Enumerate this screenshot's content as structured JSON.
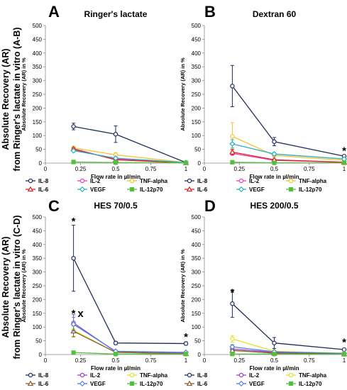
{
  "row_labels": [
    "Absolute Recovery (AR)\nfrom Ringer's lactate in vitro (A-B)",
    "Absolute Recovery (AR)\nfrom Ringer's lactate in vitro (C-D)"
  ],
  "colors": {
    "IL-8": "#1f2d5a",
    "IL-2": "#e83fbf",
    "TNF-alpha": "#f2c232",
    "IL-6": "#e02020",
    "VEGF": "#2ab0c0",
    "IL-12p70": "#55c040",
    "IL-2_CD": "#9b40c8",
    "TNF-alpha_CD": "#e8e020",
    "IL-6_CD": "#8a5a30",
    "VEGF_CD": "#5080e0"
  },
  "chart_data": [
    {
      "type": "line",
      "panel": "A",
      "title": "Ringer's lactate",
      "xlabel": "Flow rate in µl/min",
      "ylabel": "Absolute Recovery (AR) in %",
      "x": [
        0.2,
        0.5,
        1
      ],
      "xticks": [
        "0",
        "0.25",
        "0.5",
        "0.75",
        "1"
      ],
      "xlim": [
        0,
        1
      ],
      "ylim": [
        0,
        500
      ],
      "yticks": [
        "0",
        "50",
        "100",
        "150",
        "200",
        "250",
        "300",
        "350",
        "400",
        "450",
        "500"
      ],
      "series": [
        {
          "name": "IL-8",
          "values": [
            133,
            105,
            2
          ],
          "errors": [
            12,
            30,
            0
          ],
          "color": "#1f2d5a",
          "marker": "circle"
        },
        {
          "name": "IL-2",
          "values": [
            48,
            15,
            1
          ],
          "errors": [
            4,
            4,
            0
          ],
          "color": "#e83fbf",
          "marker": "circle"
        },
        {
          "name": "TNF-alpha",
          "values": [
            55,
            30,
            2
          ],
          "errors": [
            5,
            8,
            0
          ],
          "color": "#f2c232",
          "marker": "circle"
        },
        {
          "name": "IL-6",
          "values": [
            52,
            12,
            1
          ],
          "errors": [
            4,
            3,
            0
          ],
          "color": "#e02020",
          "marker": "triangle"
        },
        {
          "name": "VEGF",
          "values": [
            45,
            18,
            2
          ],
          "errors": [
            4,
            4,
            0
          ],
          "color": "#2ab0c0",
          "marker": "diamond"
        },
        {
          "name": "IL-12p70",
          "values": [
            4,
            2,
            1
          ],
          "errors": [
            0,
            0,
            0
          ],
          "color": "#55c040",
          "marker": "square"
        }
      ],
      "annotations": []
    },
    {
      "type": "line",
      "panel": "B",
      "title": "Dextran 60",
      "xlabel": "Flow rate in µl/min",
      "ylabel": "Absolute Recovery (AR) in %",
      "x": [
        0.2,
        0.5,
        1
      ],
      "xticks": [
        "0",
        "0.25",
        "0.5",
        "0.75",
        "1"
      ],
      "xlim": [
        0,
        1
      ],
      "ylim": [
        0,
        500
      ],
      "yticks": [
        "0",
        "50",
        "100",
        "150",
        "200",
        "250",
        "300",
        "350",
        "400",
        "450",
        "500"
      ],
      "series": [
        {
          "name": "IL-8",
          "values": [
            280,
            78,
            25
          ],
          "errors": [
            75,
            15,
            2
          ],
          "color": "#1f2d5a",
          "marker": "circle"
        },
        {
          "name": "IL-2",
          "values": [
            35,
            10,
            3
          ],
          "errors": [
            6,
            3,
            0
          ],
          "color": "#e83fbf",
          "marker": "circle"
        },
        {
          "name": "TNF-alpha",
          "values": [
            97,
            28,
            10
          ],
          "errors": [
            50,
            6,
            2
          ],
          "color": "#f2c232",
          "marker": "circle"
        },
        {
          "name": "IL-6",
          "values": [
            40,
            12,
            3
          ],
          "errors": [
            10,
            3,
            0
          ],
          "color": "#e02020",
          "marker": "triangle"
        },
        {
          "name": "VEGF",
          "values": [
            70,
            33,
            15
          ],
          "errors": [
            15,
            6,
            2
          ],
          "color": "#2ab0c0",
          "marker": "diamond"
        },
        {
          "name": "IL-12p70",
          "values": [
            3,
            1,
            1
          ],
          "errors": [
            0,
            0,
            0
          ],
          "color": "#55c040",
          "marker": "square"
        }
      ],
      "annotations": [
        {
          "text": "*",
          "x": 1,
          "y": 45
        }
      ]
    },
    {
      "type": "line",
      "panel": "C",
      "title": "HES 70/0.5",
      "xlabel": "Flow rate in µl/min",
      "ylabel": "Absolute Recovery (AR) in %",
      "x": [
        0.2,
        0.5,
        1
      ],
      "xticks": [
        "0",
        "0.25",
        "0.5",
        "0.75",
        "1"
      ],
      "xlim": [
        0,
        1
      ],
      "ylim": [
        0,
        500
      ],
      "yticks": [
        "0",
        "50",
        "100",
        "150",
        "200",
        "250",
        "300",
        "350",
        "400",
        "450",
        "500"
      ],
      "series": [
        {
          "name": "IL-8",
          "values": [
            350,
            42,
            40
          ],
          "errors": [
            120,
            6,
            6
          ],
          "color": "#1f2d5a",
          "marker": "circle"
        },
        {
          "name": "IL-2",
          "values": [
            115,
            10,
            5
          ],
          "errors": [
            30,
            3,
            1
          ],
          "color": "#9b40c8",
          "marker": "circle"
        },
        {
          "name": "TNF-alpha",
          "values": [
            88,
            8,
            3
          ],
          "errors": [
            25,
            3,
            1
          ],
          "color": "#e8e020",
          "marker": "circle"
        },
        {
          "name": "IL-6",
          "values": [
            85,
            8,
            3
          ],
          "errors": [
            20,
            3,
            1
          ],
          "color": "#8a5a30",
          "marker": "triangle"
        },
        {
          "name": "VEGF",
          "values": [
            110,
            12,
            8
          ],
          "errors": [
            25,
            3,
            2
          ],
          "color": "#5080e0",
          "marker": "diamond"
        },
        {
          "name": "IL-12p70",
          "values": [
            7,
            2,
            2
          ],
          "errors": [
            0,
            0,
            0
          ],
          "color": "#55c040",
          "marker": "square"
        }
      ],
      "annotations": [
        {
          "text": "*",
          "x": 0.2,
          "y": 485
        },
        {
          "text": "*",
          "x": 0.2,
          "y": 150
        },
        {
          "text": "x",
          "x": 0.25,
          "y": 150
        },
        {
          "text": "*",
          "x": 1,
          "y": 65
        }
      ]
    },
    {
      "type": "line",
      "panel": "D",
      "title": "HES 200/0.5",
      "xlabel": "Flow rate in µl/min",
      "ylabel": "Absolute Recovery (AR) in %",
      "x": [
        0.2,
        0.5,
        1
      ],
      "xticks": [
        "0",
        "0.25",
        "0.5",
        "0.75",
        "1"
      ],
      "xlim": [
        0,
        1
      ],
      "ylim": [
        0,
        500
      ],
      "yticks": [
        "0",
        "50",
        "100",
        "150",
        "200",
        "250",
        "300",
        "350",
        "400",
        "450",
        "500"
      ],
      "series": [
        {
          "name": "IL-8",
          "values": [
            185,
            42,
            18
          ],
          "errors": [
            50,
            20,
            2
          ],
          "color": "#1f2d5a",
          "marker": "circle"
        },
        {
          "name": "IL-2",
          "values": [
            20,
            8,
            3
          ],
          "errors": [
            5,
            3,
            0
          ],
          "color": "#9b40c8",
          "marker": "circle"
        },
        {
          "name": "TNF-alpha",
          "values": [
            57,
            12,
            5
          ],
          "errors": [
            12,
            4,
            1
          ],
          "color": "#e8e020",
          "marker": "circle"
        },
        {
          "name": "IL-6",
          "values": [
            15,
            5,
            2
          ],
          "errors": [
            4,
            2,
            0
          ],
          "color": "#8a5a30",
          "marker": "triangle"
        },
        {
          "name": "VEGF",
          "values": [
            28,
            10,
            4
          ],
          "errors": [
            8,
            3,
            1
          ],
          "color": "#5080e0",
          "marker": "diamond"
        },
        {
          "name": "IL-12p70",
          "values": [
            2,
            2,
            1
          ],
          "errors": [
            0,
            0,
            0
          ],
          "color": "#55c040",
          "marker": "square"
        }
      ],
      "annotations": [
        {
          "text": "*",
          "x": 0.2,
          "y": 225
        },
        {
          "text": "*",
          "x": 1,
          "y": 45
        }
      ]
    }
  ]
}
